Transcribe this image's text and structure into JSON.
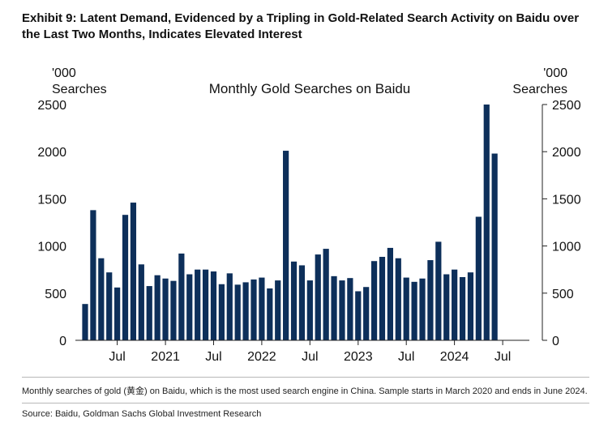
{
  "exhibit_title": "Exhibit 9: Latent Demand, Evidenced by a Tripling in Gold-Related Search Activity on Baidu over the Last Two Months, Indicates Elevated Interest",
  "footnote": "Monthly searches of gold (黄金) on Baidu, which is the most used search engine in China. Sample starts in March 2020 and ends in June 2024.",
  "source": "Source: Baidu, Goldman Sachs Global Investment Research",
  "chart_data": {
    "type": "bar",
    "title": "Monthly Gold Searches on Baidu",
    "ylabel_left": [
      "'000",
      "Searches"
    ],
    "ylabel_right": [
      "'000",
      "Searches"
    ],
    "ylim": [
      0,
      2500
    ],
    "yticks": [
      0,
      500,
      1000,
      1500,
      2000,
      2500
    ],
    "x_tick_labels": [
      "Jul",
      "2021",
      "Jul",
      "2022",
      "Jul",
      "2023",
      "Jul",
      "2024",
      "Jul"
    ],
    "x_tick_months": [
      "2020-07",
      "2021-01",
      "2021-07",
      "2022-01",
      "2022-07",
      "2023-01",
      "2023-07",
      "2024-01",
      "2024-07"
    ],
    "bar_color": "#0d2f5a",
    "grid": false,
    "categories": [
      "2020-03",
      "2020-04",
      "2020-05",
      "2020-06",
      "2020-07",
      "2020-08",
      "2020-09",
      "2020-10",
      "2020-11",
      "2020-12",
      "2021-01",
      "2021-02",
      "2021-03",
      "2021-04",
      "2021-05",
      "2021-06",
      "2021-07",
      "2021-08",
      "2021-09",
      "2021-10",
      "2021-11",
      "2021-12",
      "2022-01",
      "2022-02",
      "2022-03",
      "2022-04",
      "2022-05",
      "2022-06",
      "2022-07",
      "2022-08",
      "2022-09",
      "2022-10",
      "2022-11",
      "2022-12",
      "2023-01",
      "2023-02",
      "2023-03",
      "2023-04",
      "2023-05",
      "2023-06",
      "2023-07",
      "2023-08",
      "2023-09",
      "2023-10",
      "2023-11",
      "2023-12",
      "2024-01",
      "2024-02",
      "2024-03",
      "2024-04",
      "2024-05",
      "2024-06"
    ],
    "values": [
      385,
      1380,
      870,
      720,
      560,
      1330,
      1460,
      805,
      575,
      690,
      655,
      630,
      920,
      700,
      750,
      750,
      730,
      595,
      710,
      590,
      615,
      645,
      665,
      550,
      635,
      2010,
      835,
      795,
      635,
      910,
      970,
      680,
      635,
      660,
      520,
      565,
      840,
      885,
      980,
      870,
      665,
      620,
      655,
      850,
      1045,
      700,
      750,
      670,
      720,
      1310,
      2500,
      1980
    ]
  }
}
